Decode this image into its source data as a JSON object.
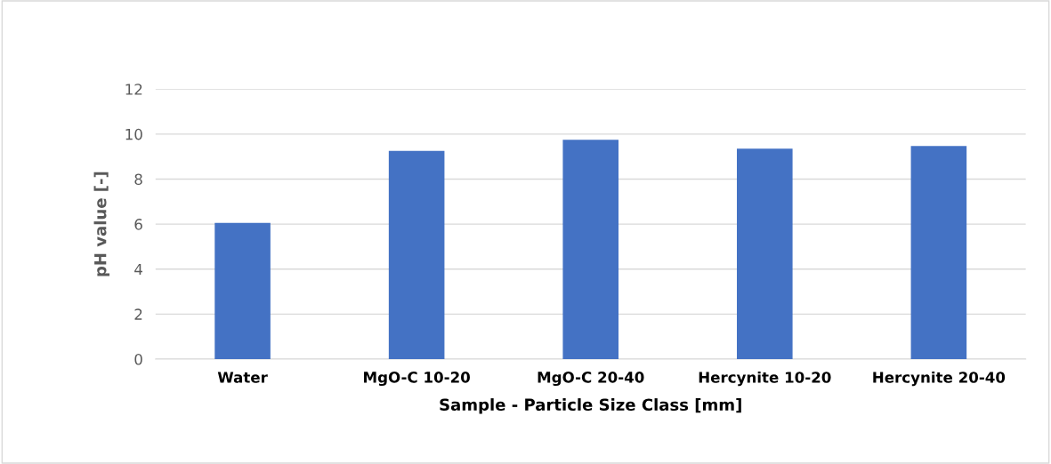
{
  "chart_data": {
    "type": "bar",
    "xlabel": "Sample - Particle Size Class [mm]",
    "ylabel": "pH value [-]",
    "categories": [
      "Water",
      "MgO-C 10-20",
      "MgO-C 20-40",
      "Hercynite 10-20",
      "Hercynite 20-40"
    ],
    "values": [
      6.05,
      9.25,
      9.75,
      9.35,
      9.47
    ],
    "color": "#4472c4",
    "ylim": [
      0,
      12
    ],
    "yticks": [
      0,
      2,
      4,
      6,
      8,
      10,
      12
    ],
    "grid": "y"
  }
}
